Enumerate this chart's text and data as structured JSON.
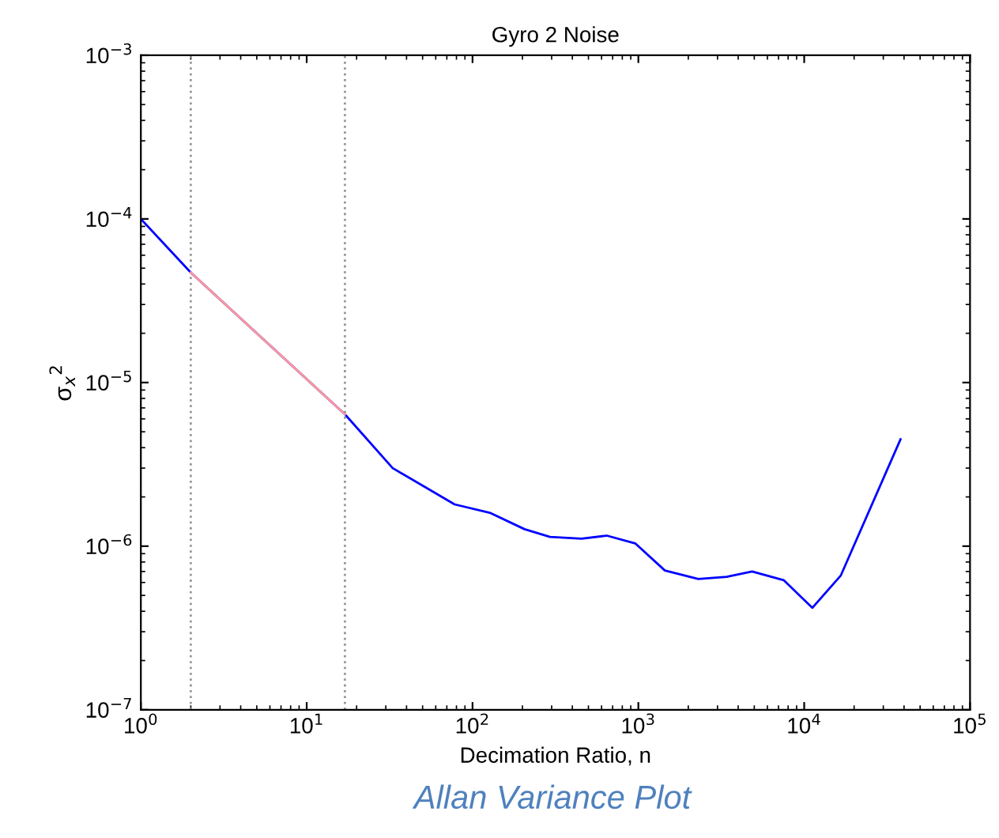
{
  "chart_data": {
    "type": "line",
    "title": "Gyro 2 Noise",
    "xlabel": "Decimation Ratio, n",
    "ylabel": "σ$_{x}$$^{2}$",
    "log": "xy",
    "grid": false,
    "legend": false,
    "marker": "none",
    "line_style": "solid",
    "xlim": [
      1,
      100000
    ],
    "ylim": [
      1e-07,
      0.001
    ],
    "xticks": [
      {
        "value": 1,
        "label": "10$^{0}$"
      },
      {
        "value": 10,
        "label": "10$^{1}$"
      },
      {
        "value": 100,
        "label": "10$^{2}$"
      },
      {
        "value": 1000,
        "label": "10$^{3}$"
      },
      {
        "value": 10000,
        "label": "10$^{4}$"
      },
      {
        "value": 100000,
        "label": "10$^{5}$"
      }
    ],
    "yticks": [
      {
        "value": 1e-07,
        "label": "10$^{−7}$"
      },
      {
        "value": 1e-06,
        "label": "10$^{−6}$"
      },
      {
        "value": 1e-05,
        "label": "10$^{−5}$"
      },
      {
        "value": 0.0001,
        "label": "10$^{−4}$"
      },
      {
        "value": 0.001,
        "label": "10$^{−3}$"
      }
    ],
    "series": [
      {
        "color": "#0000ff",
        "x": [
          1,
          2,
          17,
          33,
          78,
          127,
          206,
          293,
          454,
          645,
          957,
          1445,
          2300,
          3410,
          4850,
          7520,
          11200,
          16600,
          38100
        ],
        "values": [
          0.0001,
          4.7e-05,
          6.4e-06,
          3e-06,
          1.8e-06,
          1.6e-06,
          1.27e-06,
          1.14e-06,
          1.11e-06,
          1.16e-06,
          1.04e-06,
          7.1e-07,
          6.3e-07,
          6.5e-07,
          7e-07,
          6.2e-07,
          4.2e-07,
          6.6e-07,
          4.5e-06
        ]
      },
      {
        "color": "#ff9999",
        "x": [
          2,
          17
        ],
        "values": [
          4.7e-05,
          6.4e-06
        ]
      }
    ],
    "ref_lines": [
      {
        "axis": "x",
        "value": 2,
        "color": "#999999",
        "line_style": "dotted"
      },
      {
        "axis": "x",
        "value": 17,
        "color": "#999999",
        "line_style": "dotted"
      }
    ],
    "annotations": [
      "Allan Variance Plot"
    ]
  }
}
